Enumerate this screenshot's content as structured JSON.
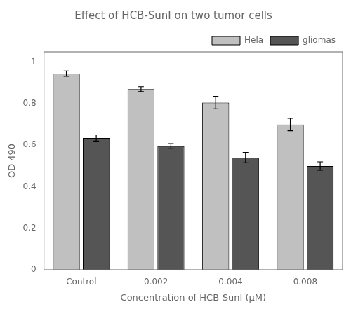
{
  "chart_data": {
    "type": "bar",
    "title": "Effect of HCB-SunI on two tumor cells",
    "xlabel": "Concentration of HCB-SunI (μM)",
    "ylabel": "OD 490",
    "categories": [
      "Control",
      "0.002",
      "0.004",
      "0.008"
    ],
    "series": [
      {
        "name": "Hela",
        "color": "#c0c0c0",
        "values": [
          0.945,
          0.87,
          0.805,
          0.7
        ],
        "errors": [
          0.013,
          0.012,
          0.03,
          0.03
        ]
      },
      {
        "name": "gliomas",
        "color": "#555555",
        "values": [
          0.635,
          0.595,
          0.54,
          0.5
        ],
        "errors": [
          0.015,
          0.012,
          0.025,
          0.02
        ]
      }
    ],
    "ylim": [
      0,
      1.05
    ],
    "yticks": [
      0,
      0.2,
      0.4,
      0.6,
      0.8,
      1
    ],
    "grid": false,
    "legend": "upper right"
  }
}
